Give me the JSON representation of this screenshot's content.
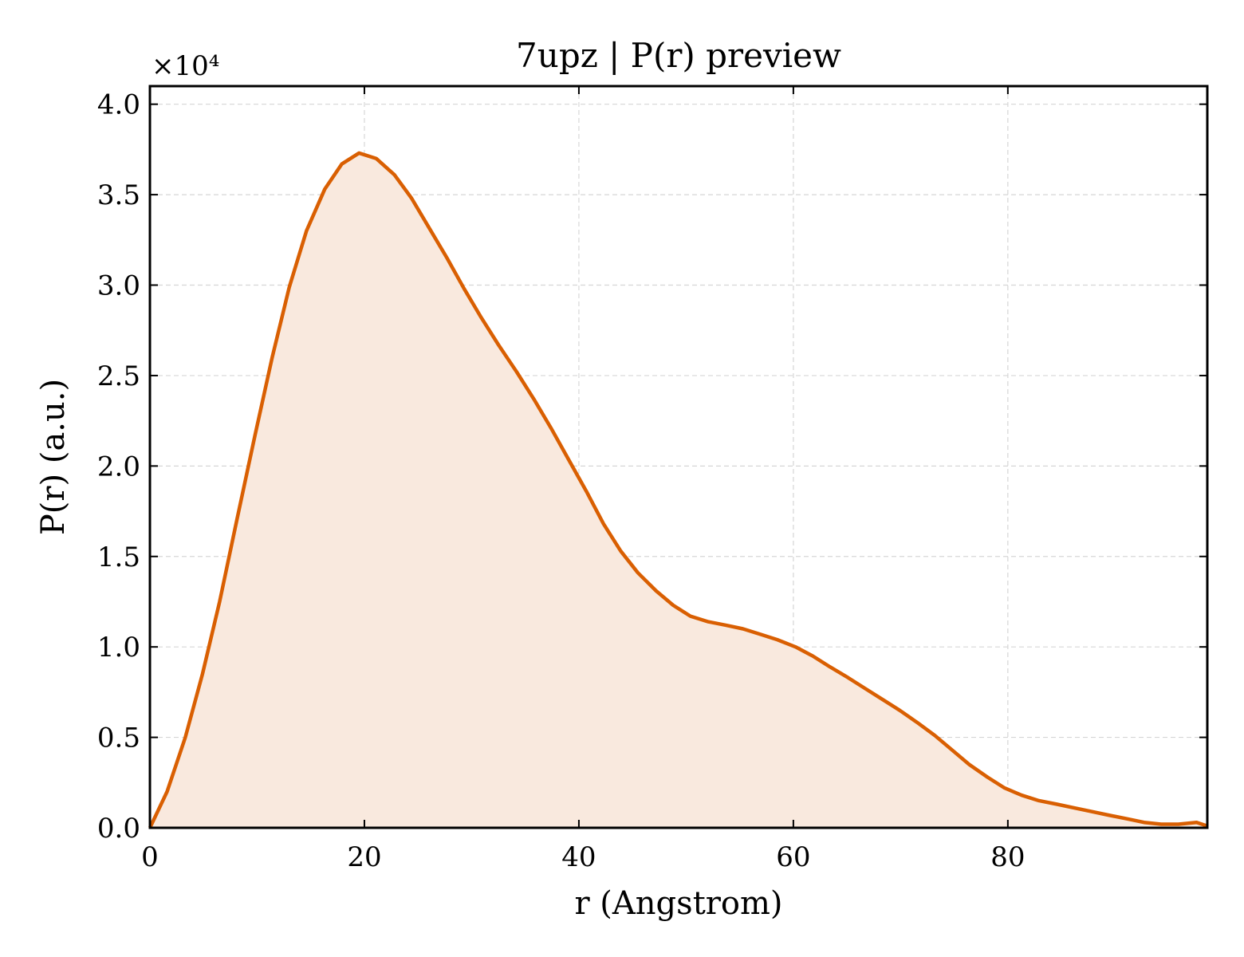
{
  "chart_data": {
    "type": "area",
    "title": "7upz | P(r) preview",
    "xlabel": "r (Angstrom)",
    "ylabel": "P(r) (a.u.)",
    "y_offset_label": "×10⁴",
    "xlim": [
      0,
      98.6
    ],
    "ylim": [
      0,
      4.1
    ],
    "x_ticks": [
      0,
      20,
      40,
      60,
      80
    ],
    "x_tick_labels": [
      "0",
      "20",
      "40",
      "60",
      "80"
    ],
    "y_ticks": [
      0,
      0.5,
      1.0,
      1.5,
      2.0,
      2.5,
      3.0,
      3.5,
      4.0
    ],
    "y_tick_labels": [
      "0.0",
      "0.5",
      "1.0",
      "1.5",
      "2.0",
      "2.5",
      "3.0",
      "3.5",
      "4.0"
    ],
    "grid": true,
    "line_color": "#d95f02",
    "fill_color": "#f9e9de",
    "series": [
      {
        "x": [
          0,
          1.6,
          3.3,
          4.9,
          6.5,
          8.1,
          9.8,
          11.4,
          13.0,
          14.6,
          16.3,
          17.9,
          19.5,
          21.1,
          22.8,
          24.4,
          26.0,
          27.7,
          29.3,
          30.9,
          32.5,
          34.2,
          35.8,
          37.4,
          39.0,
          40.7,
          42.3,
          43.9,
          45.5,
          47.2,
          48.8,
          50.4,
          52.0,
          53.7,
          55.3,
          56.9,
          58.5,
          60.2,
          61.8,
          63.4,
          65.1,
          66.7,
          68.3,
          69.9,
          71.6,
          73.2,
          74.8,
          76.4,
          78.1,
          79.7,
          81.3,
          82.9,
          84.6,
          86.2,
          87.8,
          89.4,
          91.1,
          92.7,
          94.3,
          95.9,
          97.6,
          98.6
        ],
        "values": [
          0.0,
          0.2,
          0.5,
          0.85,
          1.25,
          1.7,
          2.17,
          2.6,
          2.99,
          3.3,
          3.53,
          3.67,
          3.73,
          3.7,
          3.61,
          3.48,
          3.32,
          3.15,
          2.98,
          2.82,
          2.67,
          2.52,
          2.37,
          2.21,
          2.04,
          1.86,
          1.68,
          1.53,
          1.41,
          1.31,
          1.23,
          1.17,
          1.14,
          1.12,
          1.1,
          1.07,
          1.04,
          1.0,
          0.95,
          0.89,
          0.83,
          0.77,
          0.71,
          0.65,
          0.58,
          0.51,
          0.43,
          0.35,
          0.28,
          0.22,
          0.18,
          0.15,
          0.13,
          0.11,
          0.09,
          0.07,
          0.05,
          0.03,
          0.02,
          0.02,
          0.03,
          0.01
        ]
      }
    ]
  }
}
